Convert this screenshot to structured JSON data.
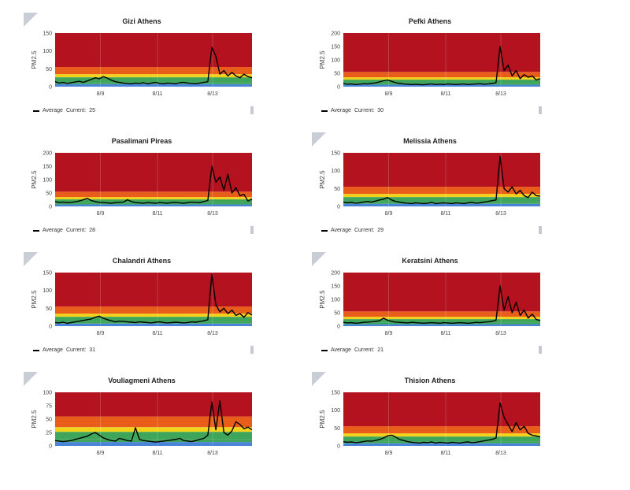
{
  "colors": {
    "red": "#b3121e",
    "orange": "#e85d1a",
    "yellow": "#f2d21b",
    "green": "#3ea55b",
    "blue": "#4a84d9",
    "line": "#000000"
  },
  "info_label": "i",
  "legend_name": "Average",
  "current_prefix": "Current:",
  "panels": [
    {
      "title": "Gizi Athens",
      "ylabel": "PM2.5",
      "ymax": 150,
      "yticks": [
        "0",
        "50",
        "100",
        "150"
      ],
      "xticks": [
        "8/9",
        "8/11",
        "8/13"
      ],
      "current": "25",
      "info": true
    },
    {
      "title": "Pefki Athens",
      "ylabel": "PM2.5",
      "ymax": 200,
      "yticks": [
        "0",
        "50",
        "100",
        "150",
        "200"
      ],
      "xticks": [
        "8/9",
        "8/11",
        "8/13"
      ],
      "current": "30",
      "info": false
    },
    {
      "title": "Pasalimani Pireas",
      "ylabel": "PM2.5",
      "ymax": 200,
      "yticks": [
        "0",
        "50",
        "100",
        "150",
        "200"
      ],
      "xticks": [
        "8/9",
        "8/11",
        "8/13"
      ],
      "current": "28",
      "info": false
    },
    {
      "title": "Melissia Athens",
      "ylabel": "PM2.5",
      "ymax": 150,
      "yticks": [
        "0",
        "50",
        "100",
        "150"
      ],
      "xticks": [
        "8/9",
        "8/11",
        "8/13"
      ],
      "current": "29",
      "info": true
    },
    {
      "title": "Chalandri Athens",
      "ylabel": "PM2.5",
      "ymax": 150,
      "yticks": [
        "0",
        "50",
        "100",
        "150"
      ],
      "xticks": [
        "8/9",
        "8/11",
        "8/13"
      ],
      "current": "31",
      "info": true
    },
    {
      "title": "Keratsini Athens",
      "ylabel": "PM2.5",
      "ymax": 200,
      "yticks": [
        "0",
        "50",
        "100",
        "150",
        "200"
      ],
      "xticks": [
        "8/9",
        "8/11",
        "8/13"
      ],
      "current": "21",
      "info": true
    },
    {
      "title": "Vouliagmeni Athens",
      "ylabel": "PM2.5",
      "ymax": 100,
      "yticks": [
        "0",
        "25",
        "50",
        "75",
        "100"
      ],
      "xticks": [
        "8/9",
        "8/11",
        "8/13"
      ],
      "current": "",
      "info": true
    },
    {
      "title": "Thision Athens",
      "ylabel": "PM2.5",
      "ymax": 150,
      "yticks": [
        "0",
        "50",
        "100",
        "150"
      ],
      "xticks": [
        "8/9",
        "8/11",
        "8/13"
      ],
      "current": "",
      "info": true
    }
  ],
  "chart_data": [
    {
      "type": "line",
      "title": "Gizi Athens",
      "ylabel": "PM2.5",
      "ylim": [
        0,
        150
      ],
      "bands": [
        12,
        35,
        55
      ],
      "x_ticks": [
        "8/9",
        "8/11",
        "8/13"
      ],
      "series": [
        {
          "name": "Average",
          "values": [
            14,
            10,
            12,
            9,
            11,
            13,
            15,
            12,
            16,
            20,
            25,
            22,
            28,
            24,
            18,
            14,
            12,
            10,
            9,
            8,
            10,
            9,
            11,
            8,
            10,
            12,
            9,
            8,
            10,
            9,
            8,
            11,
            12,
            10,
            9,
            8,
            10,
            12,
            14,
            110,
            85,
            35,
            45,
            30,
            40,
            30,
            25,
            35,
            28,
            25
          ]
        }
      ]
    },
    {
      "type": "line",
      "title": "Pefki Athens",
      "ylabel": "PM2.5",
      "ylim": [
        0,
        200
      ],
      "bands": [
        12,
        35,
        55
      ],
      "x_ticks": [
        "8/9",
        "8/11",
        "8/13"
      ],
      "series": [
        {
          "name": "Average",
          "values": [
            12,
            9,
            10,
            8,
            9,
            11,
            10,
            12,
            14,
            18,
            22,
            25,
            20,
            15,
            12,
            10,
            9,
            8,
            9,
            8,
            7,
            9,
            10,
            8,
            9,
            8,
            10,
            9,
            8,
            9,
            10,
            8,
            9,
            10,
            11,
            9,
            10,
            12,
            15,
            150,
            60,
            80,
            40,
            60,
            30,
            45,
            35,
            40,
            25,
            30
          ]
        }
      ]
    },
    {
      "type": "line",
      "title": "Pasalimani Pireas",
      "ylabel": "PM2.5",
      "ylim": [
        0,
        200
      ],
      "bands": [
        12,
        35,
        55
      ],
      "x_ticks": [
        "8/9",
        "8/11",
        "8/13"
      ],
      "series": [
        {
          "name": "Average",
          "values": [
            18,
            15,
            16,
            14,
            15,
            17,
            20,
            25,
            30,
            22,
            18,
            15,
            14,
            13,
            12,
            14,
            15,
            16,
            25,
            18,
            14,
            13,
            12,
            14,
            13,
            12,
            14,
            13,
            12,
            14,
            15,
            13,
            12,
            14,
            16,
            15,
            14,
            18,
            22,
            150,
            90,
            110,
            60,
            120,
            50,
            70,
            40,
            45,
            20,
            28
          ]
        }
      ]
    },
    {
      "type": "line",
      "title": "Melissia Athens",
      "ylabel": "PM2.5",
      "ylim": [
        0,
        150
      ],
      "bands": [
        12,
        35,
        55
      ],
      "x_ticks": [
        "8/9",
        "8/11",
        "8/13"
      ],
      "series": [
        {
          "name": "Average",
          "values": [
            12,
            10,
            11,
            9,
            10,
            12,
            14,
            12,
            15,
            18,
            20,
            25,
            18,
            14,
            12,
            10,
            9,
            8,
            10,
            9,
            8,
            9,
            11,
            8,
            9,
            10,
            9,
            8,
            10,
            9,
            8,
            10,
            11,
            9,
            10,
            12,
            14,
            16,
            18,
            140,
            50,
            40,
            55,
            35,
            45,
            30,
            25,
            40,
            30,
            29
          ]
        }
      ]
    },
    {
      "type": "line",
      "title": "Chalandri Athens",
      "ylabel": "PM2.5",
      "ylim": [
        0,
        150
      ],
      "bands": [
        12,
        35,
        55
      ],
      "x_ticks": [
        "8/9",
        "8/11",
        "8/13"
      ],
      "series": [
        {
          "name": "Average",
          "values": [
            10,
            9,
            11,
            8,
            10,
            12,
            14,
            16,
            18,
            20,
            25,
            28,
            22,
            18,
            15,
            12,
            14,
            13,
            12,
            11,
            10,
            12,
            11,
            10,
            9,
            11,
            12,
            10,
            9,
            10,
            11,
            10,
            9,
            10,
            12,
            11,
            13,
            15,
            18,
            145,
            60,
            40,
            50,
            35,
            45,
            30,
            35,
            25,
            38,
            31
          ]
        }
      ]
    },
    {
      "type": "line",
      "title": "Keratsini Athens",
      "ylabel": "PM2.5",
      "ylim": [
        0,
        200
      ],
      "bands": [
        12,
        35,
        55
      ],
      "x_ticks": [
        "8/9",
        "8/11",
        "8/13"
      ],
      "series": [
        {
          "name": "Average",
          "values": [
            14,
            12,
            13,
            11,
            12,
            14,
            15,
            16,
            18,
            20,
            30,
            22,
            18,
            15,
            14,
            13,
            12,
            14,
            13,
            12,
            11,
            12,
            13,
            12,
            11,
            13,
            12,
            11,
            12,
            13,
            12,
            11,
            12,
            14,
            13,
            15,
            16,
            18,
            22,
            150,
            60,
            110,
            50,
            90,
            40,
            60,
            30,
            45,
            25,
            21
          ]
        }
      ]
    },
    {
      "type": "line",
      "title": "Vouliagmeni Athens",
      "ylabel": "PM2.5",
      "ylim": [
        0,
        100
      ],
      "bands": [
        12,
        35,
        55
      ],
      "x_ticks": [
        "8/9",
        "8/11",
        "8/13"
      ],
      "series": [
        {
          "name": "Average",
          "values": [
            10,
            9,
            8,
            9,
            10,
            12,
            14,
            16,
            18,
            22,
            25,
            20,
            15,
            12,
            10,
            9,
            14,
            12,
            10,
            9,
            34,
            12,
            10,
            9,
            8,
            7,
            8,
            9,
            10,
            11,
            12,
            14,
            10,
            9,
            8,
            10,
            12,
            14,
            20,
            82,
            30,
            84,
            25,
            20,
            28,
            45,
            40,
            32,
            35,
            30
          ]
        }
      ]
    },
    {
      "type": "line",
      "title": "Thision Athens",
      "ylabel": "PM2.5",
      "ylim": [
        0,
        150
      ],
      "bands": [
        12,
        35,
        55
      ],
      "x_ticks": [
        "8/9",
        "8/11",
        "8/13"
      ],
      "series": [
        {
          "name": "Average",
          "values": [
            12,
            10,
            11,
            9,
            10,
            12,
            14,
            13,
            15,
            18,
            22,
            28,
            30,
            25,
            18,
            15,
            12,
            10,
            9,
            8,
            10,
            9,
            11,
            8,
            10,
            9,
            8,
            10,
            9,
            8,
            10,
            11,
            9,
            10,
            12,
            14,
            16,
            18,
            22,
            120,
            80,
            60,
            40,
            65,
            45,
            55,
            35,
            30,
            28,
            25
          ]
        }
      ]
    }
  ]
}
